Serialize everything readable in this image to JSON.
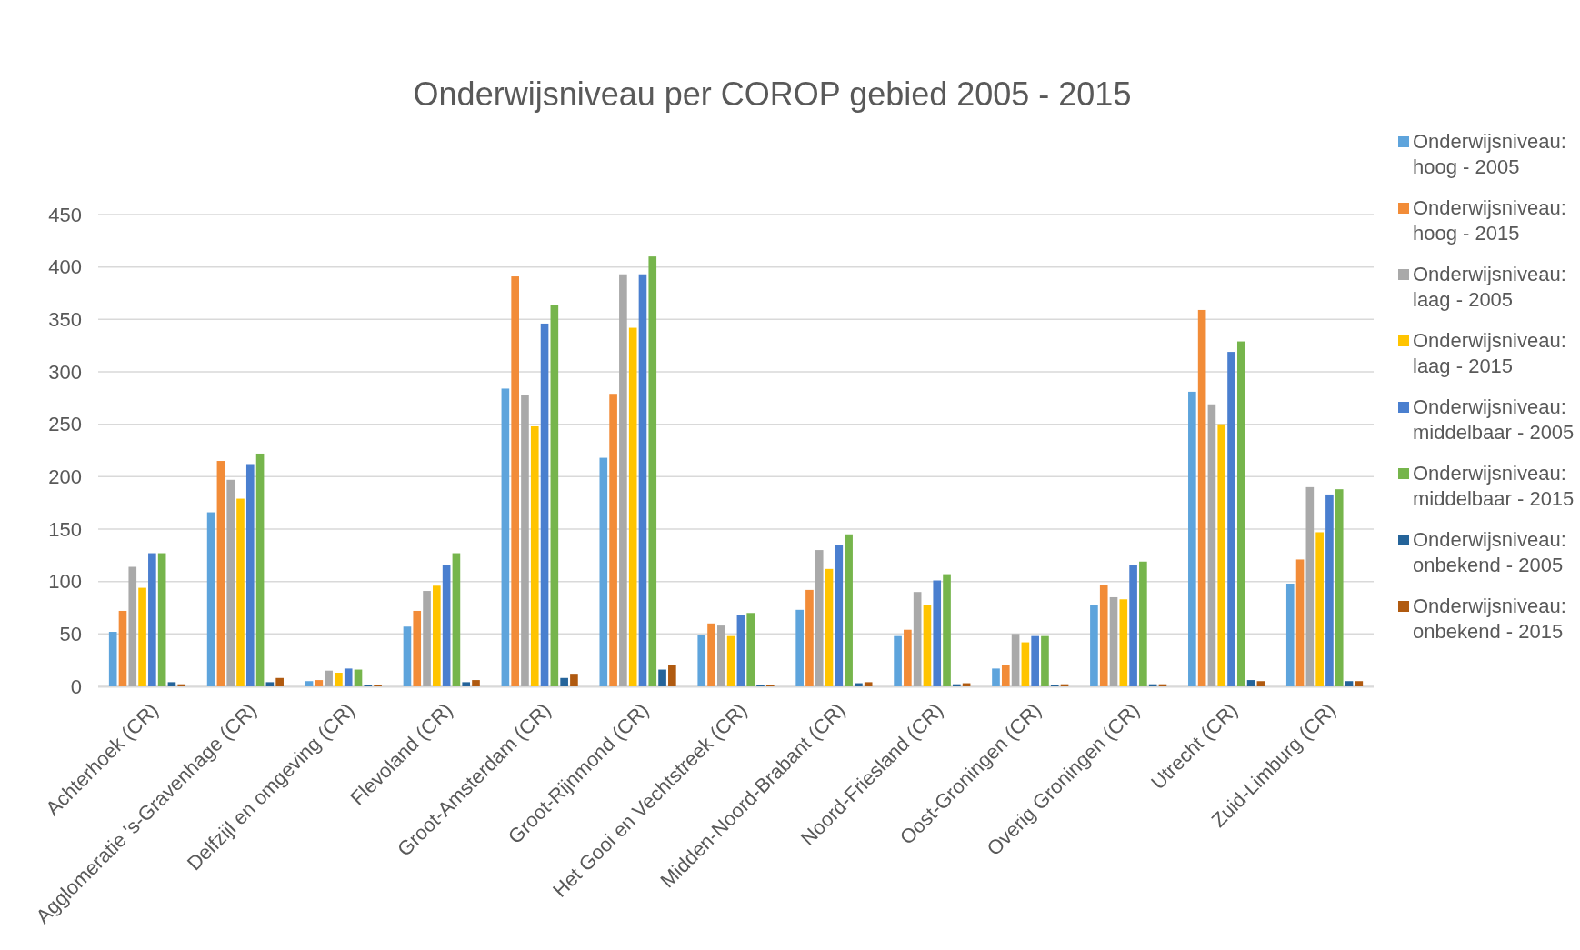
{
  "chart_data": {
    "type": "bar",
    "title": "Onderwijsniveau per COROP gebied 2005 - 2015",
    "categories": [
      "Achterhoek (CR)",
      "Agglomeratie 's-Gravenhage (CR)",
      "Delfzijl en omgeving (CR)",
      "Flevoland (CR)",
      "Groot-Amsterdam (CR)",
      "Groot-Rijnmond (CR)",
      "Het Gooi en Vechtstreek (CR)",
      "Midden-Noord-Brabant (CR)",
      "Noord-Friesland (CR)",
      "Oost-Groningen (CR)",
      "Overig Groningen (CR)",
      "Utrecht (CR)",
      "Zuid-Limburg (CR)"
    ],
    "series": [
      {
        "name": "Onderwijsniveau: hoog - 2005",
        "color": "#5ea4dc",
        "values": [
          52,
          166,
          5,
          57,
          284,
          218,
          49,
          73,
          48,
          17,
          78,
          281,
          98
        ]
      },
      {
        "name": "Onderwijsniveau: hoog - 2015",
        "color": "#f28c38",
        "values": [
          72,
          215,
          6,
          72,
          391,
          279,
          60,
          92,
          54,
          20,
          97,
          359,
          121
        ]
      },
      {
        "name": "Onderwijsniveau: laag - 2005",
        "color": "#a9a9a9",
        "values": [
          114,
          197,
          15,
          91,
          278,
          393,
          58,
          130,
          90,
          50,
          85,
          269,
          190
        ]
      },
      {
        "name": "Onderwijsniveau: laag - 2015",
        "color": "#ffc400",
        "values": [
          94,
          179,
          13,
          96,
          248,
          342,
          48,
          112,
          78,
          42,
          83,
          250,
          147
        ]
      },
      {
        "name": "Onderwijsniveau: middelbaar - 2005",
        "color": "#4a7fcf",
        "values": [
          127,
          212,
          17,
          116,
          346,
          393,
          68,
          135,
          101,
          48,
          116,
          319,
          183
        ]
      },
      {
        "name": "Onderwijsniveau: middelbaar - 2015",
        "color": "#76b54c",
        "values": [
          127,
          222,
          16,
          127,
          364,
          410,
          70,
          145,
          107,
          48,
          119,
          329,
          188
        ]
      },
      {
        "name": "Onderwijsniveau: onbekend - 2005",
        "color": "#25649a",
        "values": [
          4,
          4,
          1,
          4,
          8,
          16,
          1,
          3,
          2,
          1,
          2,
          6,
          5
        ]
      },
      {
        "name": "Onderwijsniveau: onbekend - 2015",
        "color": "#b05a10",
        "values": [
          2,
          8,
          1,
          6,
          12,
          20,
          1,
          4,
          3,
          2,
          2,
          5,
          5
        ]
      }
    ],
    "ylim": [
      0,
      450
    ],
    "yticks": [
      0,
      50,
      100,
      150,
      200,
      250,
      300,
      350,
      400,
      450
    ],
    "grid": "y",
    "legend": "right"
  }
}
